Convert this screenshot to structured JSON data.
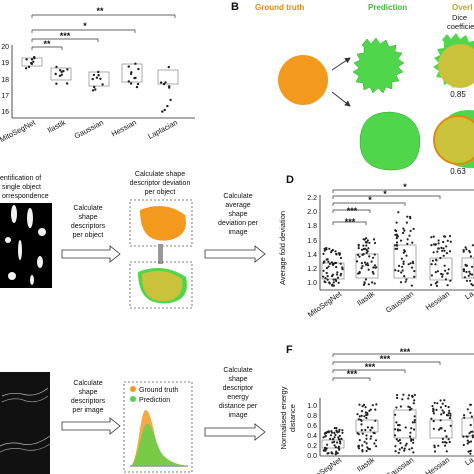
{
  "panel_a": {
    "y_ticks": [
      "20",
      "19",
      "18",
      "17",
      "16"
    ],
    "x_labels": [
      "MitoSegNet",
      "Ilastik",
      "Gaussian",
      "Hessian",
      "Laplacian"
    ],
    "sig": [
      "**",
      "*",
      "***",
      "**"
    ]
  },
  "panel_b": {
    "letter": "B",
    "headers": [
      "Ground truth",
      "Prediction",
      "Overl"
    ],
    "dice_label_1": "Dice",
    "dice_label_2": "coefficie",
    "values": [
      "0.85",
      "0.63"
    ],
    "colors": {
      "ground_truth": "#f39a1e",
      "prediction": "#4fd64a",
      "overlap": "#c9c23a"
    }
  },
  "panel_c": {
    "step1": [
      "entification of",
      "single object",
      "orrespondence"
    ],
    "step2": [
      "Calculate",
      "shape",
      "descriptors",
      "per object"
    ],
    "step3": [
      "Calculate shape",
      "descriptor deviation",
      "per object"
    ],
    "step4": [
      "Calculate",
      "average",
      "shape",
      "deviation per",
      "image"
    ]
  },
  "panel_d": {
    "letter": "D",
    "ylabel": "Average fold deviation",
    "y_ticks": [
      "2.2",
      "2.0",
      "1.8",
      "1.6",
      "1.4",
      "1.2",
      "1.0"
    ],
    "x_labels": [
      "MitoSegNet",
      "Ilastik",
      "Gaussian",
      "Hessian",
      "La"
    ],
    "sig": [
      "*",
      "*",
      "*",
      "***",
      "***"
    ]
  },
  "panel_e": {
    "step1": [
      "Calculate",
      "shape",
      "descriptors",
      "per image"
    ],
    "step2": [
      "Calculate",
      "shape",
      "descriptor",
      "energy",
      "distance per",
      "image"
    ],
    "legend": [
      "Ground truth",
      "Prediction"
    ]
  },
  "panel_f": {
    "letter": "F",
    "ylabel_1": "Normalised energy",
    "ylabel_2": "distance",
    "y_ticks": [
      "1.0",
      "0.8",
      "0.6",
      "0.4",
      "0.2",
      "0.0"
    ],
    "x_labels": [
      "MitoSegNet",
      "Ilastik",
      "Gaussian",
      "Hessian",
      "La"
    ],
    "sig": [
      "***",
      "***",
      "***",
      "***"
    ]
  }
}
